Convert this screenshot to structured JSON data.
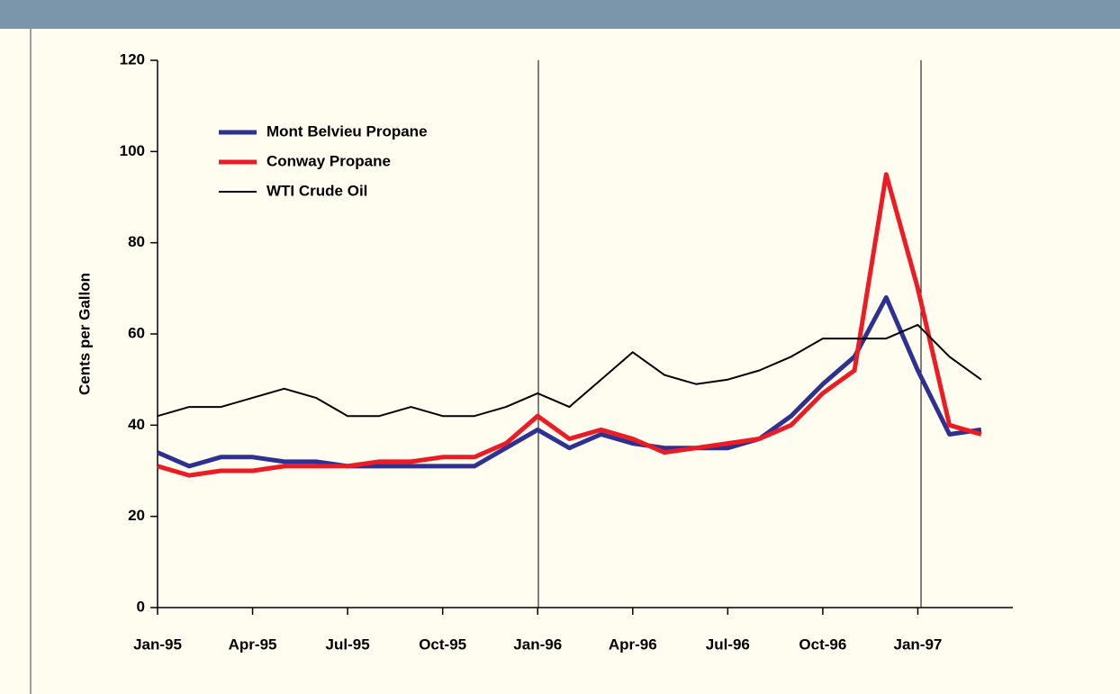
{
  "chart_data": {
    "type": "line",
    "ylabel": "Cents per Gallon",
    "x": [
      "1995-01",
      "1995-02",
      "1995-03",
      "1995-04",
      "1995-05",
      "1995-06",
      "1995-07",
      "1995-08",
      "1995-09",
      "1995-10",
      "1995-11",
      "1995-12",
      "1996-01",
      "1996-02",
      "1996-03",
      "1996-04",
      "1996-05",
      "1996-06",
      "1996-07",
      "1996-08",
      "1996-09",
      "1996-10",
      "1996-11",
      "1996-12",
      "1997-01",
      "1997-02",
      "1997-03"
    ],
    "series": [
      {
        "name": "Mont Belvieu Propane",
        "color": "#2e3192",
        "values": [
          34,
          31,
          33,
          33,
          32,
          32,
          31,
          31,
          31,
          31,
          31,
          35,
          39,
          35,
          38,
          36,
          35,
          35,
          35,
          37,
          42,
          49,
          55,
          68,
          52,
          38,
          39
        ]
      },
      {
        "name": "Conway Propane",
        "color": "#ed1c24",
        "values": [
          31,
          29,
          30,
          30,
          31,
          31,
          31,
          32,
          32,
          33,
          33,
          36,
          42,
          37,
          39,
          37,
          34,
          35,
          36,
          37,
          40,
          47,
          52,
          95,
          70,
          40,
          38
        ]
      },
      {
        "name": "WTI Crude Oil",
        "color": "#000000",
        "values": [
          42,
          44,
          44,
          46,
          48,
          46,
          42,
          42,
          44,
          42,
          42,
          44,
          47,
          44,
          50,
          56,
          51,
          49,
          50,
          52,
          55,
          59,
          59,
          59,
          62,
          55,
          50
        ]
      }
    ],
    "xlim": [
      "1995-01",
      "1997-04"
    ],
    "xticks": [
      {
        "value": "1995-01",
        "label": "Jan-95"
      },
      {
        "value": "1995-04",
        "label": "Apr-95"
      },
      {
        "value": "1995-07",
        "label": "Jul-95"
      },
      {
        "value": "1995-10",
        "label": "Oct-95"
      },
      {
        "value": "1996-01",
        "label": "Jan-96"
      },
      {
        "value": "1996-04",
        "label": "Apr-96"
      },
      {
        "value": "1996-07",
        "label": "Jul-96"
      },
      {
        "value": "1996-10",
        "label": "Oct-96"
      },
      {
        "value": "1997-01",
        "label": "Jan-97"
      }
    ],
    "ylim": [
      0,
      120
    ],
    "yticks": [
      0,
      20,
      40,
      60,
      80,
      100,
      120
    ],
    "legend": "upper-left"
  }
}
